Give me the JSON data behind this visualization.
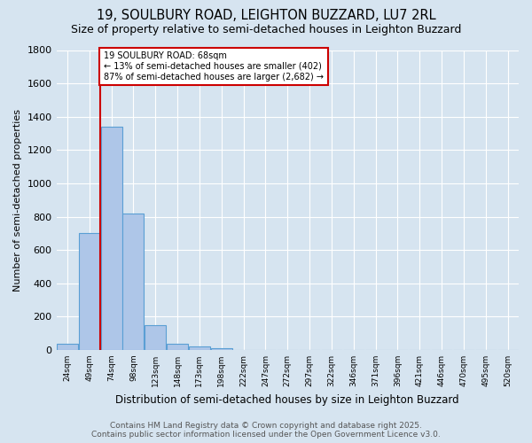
{
  "title": "19, SOULBURY ROAD, LEIGHTON BUZZARD, LU7 2RL",
  "subtitle": "Size of property relative to semi-detached houses in Leighton Buzzard",
  "xlabel": "Distribution of semi-detached houses by size in Leighton Buzzard",
  "ylabel": "Number of semi-detached properties",
  "bin_labels": [
    "24sqm",
    "49sqm",
    "74sqm",
    "98sqm",
    "123sqm",
    "148sqm",
    "173sqm",
    "198sqm",
    "222sqm",
    "247sqm",
    "272sqm",
    "297sqm",
    "322sqm",
    "346sqm",
    "371sqm",
    "396sqm",
    "421sqm",
    "446sqm",
    "470sqm",
    "495sqm",
    "520sqm"
  ],
  "bar_heights": [
    35,
    700,
    1340,
    820,
    150,
    35,
    22,
    12,
    0,
    0,
    0,
    0,
    0,
    0,
    0,
    0,
    0,
    0,
    0,
    0,
    0
  ],
  "bar_color": "#aec6e8",
  "bar_edge_color": "#5a9fd4",
  "red_line_bin": 1.5,
  "annotation_title": "19 SOULBURY ROAD: 68sqm",
  "annotation_line1": "← 13% of semi-detached houses are smaller (402)",
  "annotation_line2": "87% of semi-detached houses are larger (2,682) →",
  "annotation_box_color": "#ffffff",
  "annotation_box_edge_color": "#cc0000",
  "red_line_color": "#cc0000",
  "background_color": "#d6e4f0",
  "plot_bg_color": "#d6e4f0",
  "ylim": [
    0,
    1800
  ],
  "footer1": "Contains HM Land Registry data © Crown copyright and database right 2025.",
  "footer2": "Contains public sector information licensed under the Open Government Licence v3.0.",
  "title_fontsize": 10.5,
  "subtitle_fontsize": 9,
  "footer_fontsize": 6.5,
  "grid_color": "#ffffff"
}
